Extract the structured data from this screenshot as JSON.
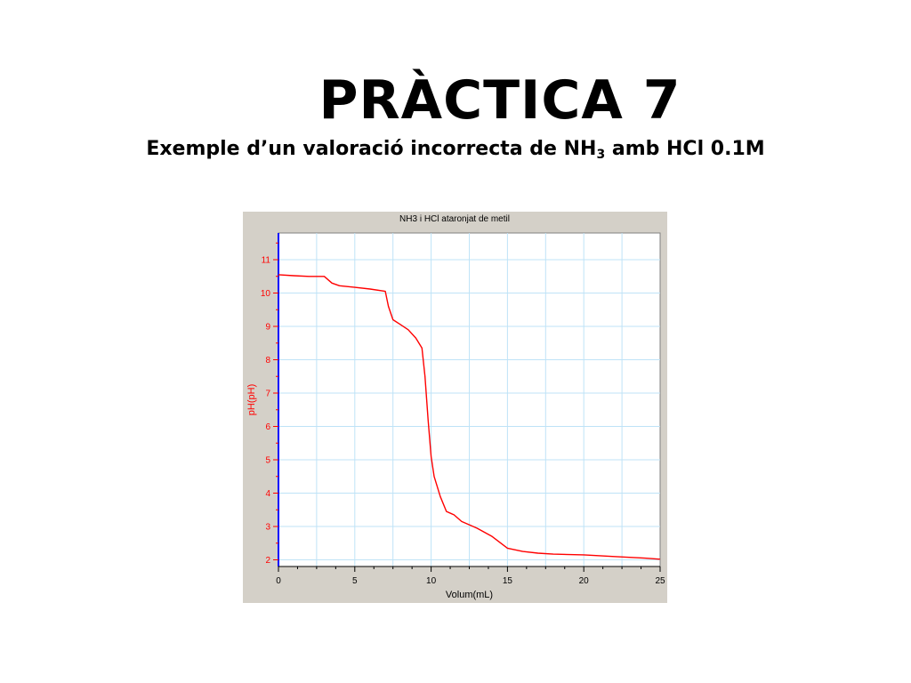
{
  "slide": {
    "title": "PRÀCTICA 7",
    "subtitle_prefix": "Exemple d’un valoració incorrecta de NH",
    "subtitle_sub": "3",
    "subtitle_suffix": " amb HCl 0.1M"
  },
  "colors": {
    "panel_background": "#d4d0c8",
    "plot_background": "#ffffff",
    "grid": "#bfe3f7",
    "curve": "#ff0000",
    "y_axis": "#0000ff",
    "y_label": "#ff0000",
    "tick_labels_y": "#ff0000",
    "tick_labels_x": "#000000"
  },
  "chart_data": {
    "type": "line",
    "title": "NH3 i HCl ataronjat de metil",
    "xlabel": "Volum(mL)",
    "ylabel": "pH(pH)",
    "xlim": [
      0,
      25
    ],
    "ylim": [
      1.8,
      11.8
    ],
    "x_ticks": [
      0,
      5,
      10,
      15,
      20,
      25
    ],
    "y_ticks": [
      2,
      3,
      4,
      5,
      6,
      7,
      8,
      9,
      10,
      11
    ],
    "grid": true,
    "series": [
      {
        "x": [
          0,
          1,
          2,
          3,
          3.5,
          4,
          5,
          6,
          7,
          7.2,
          7.5,
          8,
          8.5,
          9,
          9.4,
          9.6,
          9.8,
          10.0,
          10.2,
          10.6,
          11,
          11.5,
          12,
          13,
          14,
          15,
          16,
          17,
          18,
          20,
          22,
          24,
          25
        ],
        "y": [
          10.55,
          10.52,
          10.5,
          10.5,
          10.3,
          10.22,
          10.17,
          10.12,
          10.05,
          9.6,
          9.2,
          9.05,
          8.9,
          8.65,
          8.35,
          7.5,
          6.2,
          5.1,
          4.5,
          3.9,
          3.45,
          3.35,
          3.15,
          2.95,
          2.7,
          2.35,
          2.25,
          2.2,
          2.17,
          2.15,
          2.1,
          2.05,
          2.02
        ]
      }
    ]
  }
}
